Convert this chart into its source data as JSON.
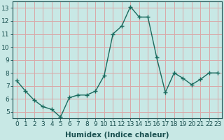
{
  "x": [
    0,
    1,
    2,
    3,
    4,
    5,
    6,
    7,
    8,
    9,
    10,
    11,
    12,
    13,
    14,
    15,
    16,
    17,
    18,
    19,
    20,
    21,
    22,
    23
  ],
  "y": [
    7.4,
    6.6,
    5.9,
    5.4,
    5.2,
    4.6,
    6.1,
    6.3,
    6.3,
    6.6,
    7.8,
    11.0,
    11.6,
    13.1,
    12.3,
    12.3,
    9.2,
    6.5,
    8.0,
    7.6,
    7.1,
    7.5,
    8.0,
    8.0
  ],
  "line_color": "#1a6b5e",
  "marker_color": "#1a6b5e",
  "bg_color": "#c8e8e5",
  "grid_color": "#d9a8a8",
  "xlabel": "Humidex (Indice chaleur)",
  "xlim": [
    -0.5,
    23.5
  ],
  "ylim": [
    4.5,
    13.5
  ],
  "yticks": [
    5,
    6,
    7,
    8,
    9,
    10,
    11,
    12,
    13
  ],
  "xticks": [
    0,
    1,
    2,
    3,
    4,
    5,
    6,
    7,
    8,
    9,
    10,
    11,
    12,
    13,
    14,
    15,
    16,
    17,
    18,
    19,
    20,
    21,
    22,
    23
  ],
  "tick_label_fontsize": 6.5,
  "xlabel_fontsize": 7.5,
  "tick_color": "#1a5050",
  "spine_color": "#1a5050"
}
